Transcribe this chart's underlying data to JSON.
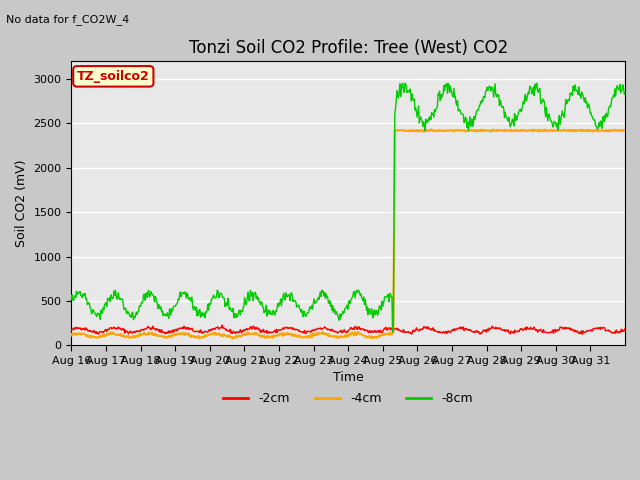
{
  "title": "Tonzi Soil CO2 Profile: Tree (West) CO2",
  "no_data_text": "No data for f_CO2W_4",
  "ylabel": "Soil CO2 (mV)",
  "xlabel": "Time",
  "ylim": [
    0,
    3200
  ],
  "yticks": [
    0,
    500,
    1000,
    1500,
    2000,
    2500,
    3000
  ],
  "x_labels": [
    "Aug 16",
    "Aug 17",
    "Aug 18",
    "Aug 19",
    "Aug 20",
    "Aug 21",
    "Aug 22",
    "Aug 23",
    "Aug 24",
    "Aug 25",
    "Aug 26",
    "Aug 27",
    "Aug 28",
    "Aug 29",
    "Aug 30",
    "Aug 31"
  ],
  "legend_label_box": "TZ_soilco2",
  "legend_box_color": "#cc0000",
  "legend_box_bg": "#ffffcc",
  "line_colors": {
    "2cm": "#ff0000",
    "4cm": "#ffa500",
    "8cm": "#00cc00"
  },
  "bg_color": "#e8e8e8",
  "grid_color": "#ffffff",
  "title_fontsize": 12,
  "label_fontsize": 9,
  "tick_fontsize": 8
}
